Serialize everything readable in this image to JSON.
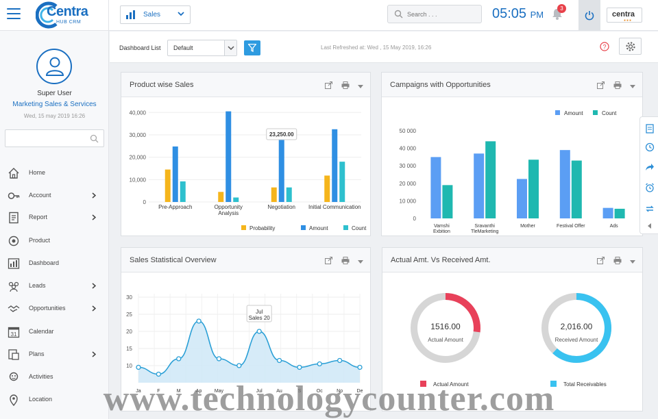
{
  "header": {
    "logo_text": "Centra",
    "logo_sub": "HUB CRM",
    "module": "Sales",
    "search_placeholder": "Search . . .",
    "time": "05:05",
    "ampm": "PM",
    "notification_count": "3",
    "brand_badge": "centra",
    "icons": {
      "menu": "hamburger-icon",
      "module": "bar-chart-icon",
      "search": "search-icon",
      "bell": "bell-icon",
      "power": "power-icon"
    }
  },
  "sidebar": {
    "user_name": "Super User",
    "user_role": "Marketing Sales & Services",
    "user_date": "Wed, 15 may 2019 16:26",
    "search_placeholder": "",
    "items": [
      {
        "label": "Home",
        "icon": "home-icon",
        "has_submenu": false
      },
      {
        "label": "Account",
        "icon": "key-icon",
        "has_submenu": true
      },
      {
        "label": "Report",
        "icon": "report-icon",
        "has_submenu": true
      },
      {
        "label": "Product",
        "icon": "product-icon",
        "has_submenu": false
      },
      {
        "label": "Dashboard",
        "icon": "dashboard-icon",
        "has_submenu": false
      },
      {
        "label": "Leads",
        "icon": "leads-icon",
        "has_submenu": true
      },
      {
        "label": "Opportunities",
        "icon": "handshake-icon",
        "has_submenu": true
      },
      {
        "label": "Calendar",
        "icon": "calendar-icon",
        "has_submenu": false
      },
      {
        "label": "Plans",
        "icon": "plans-icon",
        "has_submenu": true
      },
      {
        "label": "Activities",
        "icon": "activities-icon",
        "has_submenu": false
      },
      {
        "label": "Location",
        "icon": "location-icon",
        "has_submenu": false
      }
    ],
    "calendar_day": "31"
  },
  "dashboard_bar": {
    "list_label": "Dashboard List",
    "selected": "Default",
    "last_refreshed": "Last Refreshed at: Wed , 15 May 2019, 16:26"
  },
  "colors": {
    "blue": "#2f8fe3",
    "yellow": "#f5b51c",
    "teal": "#2ec0ce",
    "bar_blue": "#5b9ef4",
    "bar_teal": "#1fb8b0",
    "red": "#e8415a",
    "cyan": "#39c2f0",
    "gray": "#d6d6d6",
    "accent": "#1a6fc1"
  },
  "panels": {
    "product": {
      "title": "Product wise Sales"
    },
    "campaigns": {
      "title": "Campaigns with Opportunities"
    },
    "stats": {
      "title": "Sales Statistical Overview"
    },
    "actual": {
      "title": "Actual Amt. Vs Received Amt."
    }
  },
  "chart_data": [
    {
      "id": "product",
      "type": "bar",
      "title": "Product wise Sales",
      "categories": [
        "Pre-Approach",
        "Opportunity Analysis",
        "Negotiation",
        "Initial Communication"
      ],
      "category_lines": [
        [
          "Pre-Approach"
        ],
        [
          "Opportunity",
          "Analysis"
        ],
        [
          "Negotiation"
        ],
        [
          "Initial Communication"
        ]
      ],
      "series": [
        {
          "name": "Probability",
          "color": "#f5b51c",
          "values": [
            14500,
            4500,
            6500,
            11800
          ]
        },
        {
          "name": "Amount",
          "color": "#2f8fe3",
          "values": [
            24800,
            40500,
            27800,
            32500
          ]
        },
        {
          "name": "Count",
          "color": "#2ec0ce",
          "values": [
            9200,
            2000,
            6500,
            18000
          ]
        }
      ],
      "yticks": [
        "0",
        "10,000",
        "20,000",
        "30,000",
        "40,000"
      ],
      "ylim": [
        0,
        41000
      ],
      "tooltip": {
        "text": "23,250.00"
      },
      "legend": "bottom-right"
    },
    {
      "id": "campaigns",
      "type": "bar",
      "title": "Campaigns with Opportunities",
      "categories": [
        "Vamshi Exbition",
        "Sravanthi TleMarketing",
        "Mother",
        "Festival Offer",
        "Ads"
      ],
      "category_lines": [
        [
          "Vamshi",
          "Exbition"
        ],
        [
          "Sravanthi",
          "TleMarketing"
        ],
        [
          "Mother"
        ],
        [
          "Festival Offer"
        ],
        [
          "Ads"
        ]
      ],
      "series": [
        {
          "name": "Amount",
          "color": "#5b9ef4",
          "values": [
            35000,
            37000,
            22500,
            39000,
            6000
          ]
        },
        {
          "name": "Count",
          "color": "#1fb8b0",
          "values": [
            19000,
            44000,
            33500,
            33000,
            5500
          ]
        }
      ],
      "yticks": [
        "0",
        "10 000",
        "20 000",
        "30 000",
        "40 000",
        "50 000"
      ],
      "ylim": [
        0,
        50000
      ],
      "legend": "top-right"
    },
    {
      "id": "stats",
      "type": "area",
      "title": "Sales Statistical Overview",
      "categories": [
        "Ja",
        "F",
        "M",
        "Ap",
        "May",
        "",
        "Jul",
        "Au",
        "S",
        "Oc",
        "No",
        "De"
      ],
      "values": [
        9.5,
        7.5,
        12,
        23,
        12,
        10,
        20,
        11.5,
        9.5,
        10.5,
        11.5,
        9.5
      ],
      "color": "#2a9fd6",
      "fill": "#cfe8f7",
      "yticks": [
        "10",
        "15",
        "20",
        "25",
        "30"
      ],
      "ylim": [
        5,
        30
      ],
      "tooltip": {
        "title": "Jul",
        "text": "Sales 20"
      }
    },
    {
      "id": "actual",
      "type": "pie",
      "title": "Actual Amt. Vs Received Amt.",
      "donuts": [
        {
          "value": "1516.00",
          "label": "Actual Amount",
          "fraction": 0.27,
          "color": "#e8415a"
        },
        {
          "value": "2,016.00",
          "label": "Received Amount",
          "fraction": 0.62,
          "color": "#39c2f0"
        }
      ],
      "legend": [
        {
          "name": "Actual Amount",
          "color": "#e8415a"
        },
        {
          "name": "Total Receivables",
          "color": "#39c2f0"
        }
      ]
    }
  ],
  "watermark": "www.technologycounter.com"
}
